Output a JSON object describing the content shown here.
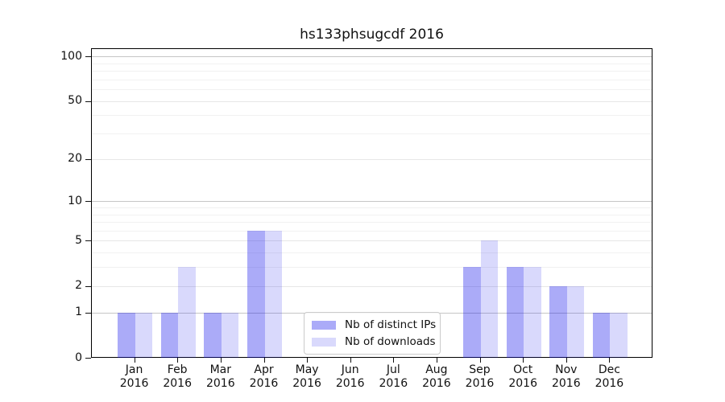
{
  "chart_data": {
    "type": "bar",
    "title": "hs133phsugcdf 2016",
    "x_year": "2016",
    "categories": [
      "Jan",
      "Feb",
      "Mar",
      "Apr",
      "May",
      "Jun",
      "Jul",
      "Aug",
      "Sep",
      "Oct",
      "Nov",
      "Dec"
    ],
    "series": [
      {
        "name": "Nb of distinct IPs",
        "fill": "rgba(10,10,235,0.34)",
        "approx_hex": "#aaaaf8",
        "values": [
          1,
          1,
          1,
          6,
          0,
          0,
          0,
          0,
          3,
          3,
          2,
          1
        ]
      },
      {
        "name": "Nb of downloads",
        "fill": "rgba(10,10,235,0.155)",
        "approx_hex": "#d9d9fa",
        "values": [
          1,
          3,
          1,
          6,
          0,
          0,
          0,
          0,
          5,
          3,
          2,
          1
        ]
      }
    ],
    "y_axis": {
      "scale": "log1p",
      "ticks": [
        0,
        1,
        2,
        5,
        10,
        20,
        50,
        100
      ],
      "range": [
        0,
        113
      ]
    },
    "gridlines": {
      "major_values": [
        1,
        10,
        100
      ],
      "light_values": [
        2,
        5,
        20,
        50
      ],
      "minor_values": [
        3,
        4,
        6,
        7,
        8,
        9,
        30,
        40,
        60,
        70,
        80,
        90
      ],
      "major_color": "#c6c6c6",
      "light_color": "#e7e7e7",
      "minor_color": "#f1f1f1"
    },
    "legend": {
      "position": "lower-center"
    },
    "colors": {
      "background": "#ffffff",
      "spine": "#000000",
      "text": "#111111"
    }
  }
}
